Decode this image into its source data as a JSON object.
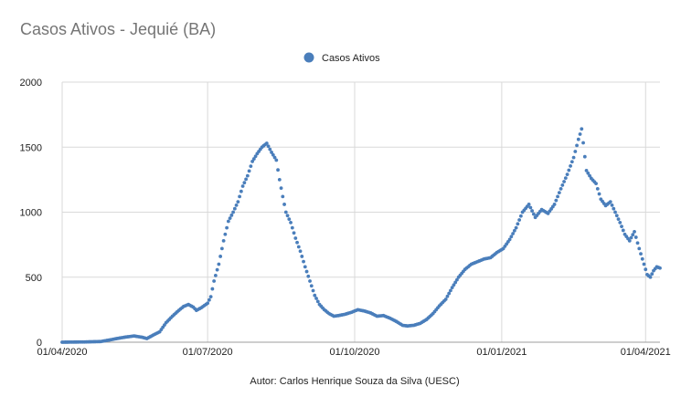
{
  "chart_data": {
    "type": "scatter",
    "title": "Casos Ativos - Jequié (BA)",
    "footer": "Autor: Carlos Henrique Souza da Silva  (UESC)",
    "legend": {
      "position": "top-center",
      "entries": [
        {
          "name": "Casos Ativos"
        }
      ]
    },
    "xlabel": "",
    "ylabel": "",
    "x_range": [
      "2020-04-01",
      "2021-04-10"
    ],
    "x_ticks": [
      "01/04/2020",
      "01/07/2020",
      "01/10/2020",
      "01/01/2021",
      "01/04/2021"
    ],
    "x_tick_dates": [
      "2020-04-01",
      "2020-07-01",
      "2020-10-01",
      "2021-01-01",
      "2021-04-01"
    ],
    "ylim": [
      0,
      2000
    ],
    "y_ticks": [
      0,
      500,
      1000,
      1500,
      2000
    ],
    "grid": true,
    "series": [
      {
        "name": "Casos Ativos",
        "color": "#4a7ebb",
        "points": [
          [
            "2020-04-01",
            0
          ],
          [
            "2020-04-15",
            2
          ],
          [
            "2020-04-25",
            5
          ],
          [
            "2020-05-01",
            18
          ],
          [
            "2020-05-06",
            30
          ],
          [
            "2020-05-11",
            40
          ],
          [
            "2020-05-16",
            48
          ],
          [
            "2020-05-21",
            38
          ],
          [
            "2020-05-24",
            28
          ],
          [
            "2020-05-28",
            55
          ],
          [
            "2020-06-01",
            80
          ],
          [
            "2020-06-05",
            150
          ],
          [
            "2020-06-09",
            200
          ],
          [
            "2020-06-13",
            245
          ],
          [
            "2020-06-16",
            275
          ],
          [
            "2020-06-19",
            290
          ],
          [
            "2020-06-22",
            270
          ],
          [
            "2020-06-24",
            245
          ],
          [
            "2020-06-27",
            265
          ],
          [
            "2020-07-01",
            300
          ],
          [
            "2020-07-03",
            350
          ],
          [
            "2020-07-05",
            470
          ],
          [
            "2020-07-08",
            600
          ],
          [
            "2020-07-11",
            780
          ],
          [
            "2020-07-14",
            930
          ],
          [
            "2020-07-17",
            1000
          ],
          [
            "2020-07-20",
            1080
          ],
          [
            "2020-07-23",
            1200
          ],
          [
            "2020-07-26",
            1280
          ],
          [
            "2020-07-29",
            1390
          ],
          [
            "2020-08-01",
            1450
          ],
          [
            "2020-08-04",
            1500
          ],
          [
            "2020-08-07",
            1530
          ],
          [
            "2020-08-10",
            1460
          ],
          [
            "2020-08-13",
            1400
          ],
          [
            "2020-08-15",
            1250
          ],
          [
            "2020-08-17",
            1120
          ],
          [
            "2020-08-19",
            1000
          ],
          [
            "2020-08-22",
            920
          ],
          [
            "2020-08-25",
            800
          ],
          [
            "2020-08-28",
            700
          ],
          [
            "2020-08-31",
            580
          ],
          [
            "2020-09-03",
            470
          ],
          [
            "2020-09-06",
            360
          ],
          [
            "2020-09-09",
            290
          ],
          [
            "2020-09-12",
            250
          ],
          [
            "2020-09-15",
            220
          ],
          [
            "2020-09-18",
            200
          ],
          [
            "2020-09-21",
            205
          ],
          [
            "2020-09-25",
            215
          ],
          [
            "2020-09-29",
            230
          ],
          [
            "2020-10-03",
            250
          ],
          [
            "2020-10-07",
            240
          ],
          [
            "2020-10-11",
            225
          ],
          [
            "2020-10-15",
            200
          ],
          [
            "2020-10-19",
            205
          ],
          [
            "2020-10-23",
            185
          ],
          [
            "2020-10-27",
            160
          ],
          [
            "2020-10-31",
            130
          ],
          [
            "2020-11-03",
            125
          ],
          [
            "2020-11-07",
            130
          ],
          [
            "2020-11-11",
            145
          ],
          [
            "2020-11-15",
            175
          ],
          [
            "2020-11-19",
            220
          ],
          [
            "2020-11-23",
            280
          ],
          [
            "2020-11-27",
            330
          ],
          [
            "2020-12-01",
            420
          ],
          [
            "2020-12-05",
            500
          ],
          [
            "2020-12-09",
            560
          ],
          [
            "2020-12-13",
            600
          ],
          [
            "2020-12-17",
            620
          ],
          [
            "2020-12-21",
            640
          ],
          [
            "2020-12-25",
            650
          ],
          [
            "2020-12-29",
            690
          ],
          [
            "2021-01-02",
            720
          ],
          [
            "2021-01-06",
            790
          ],
          [
            "2021-01-10",
            880
          ],
          [
            "2021-01-14",
            1000
          ],
          [
            "2021-01-18",
            1060
          ],
          [
            "2021-01-22",
            960
          ],
          [
            "2021-01-26",
            1020
          ],
          [
            "2021-01-30",
            990
          ],
          [
            "2021-02-03",
            1060
          ],
          [
            "2021-02-07",
            1180
          ],
          [
            "2021-02-11",
            1290
          ],
          [
            "2021-02-15",
            1420
          ],
          [
            "2021-02-18",
            1560
          ],
          [
            "2021-02-20",
            1640
          ],
          [
            "2021-02-23",
            1320
          ],
          [
            "2021-02-26",
            1260
          ],
          [
            "2021-03-01",
            1220
          ],
          [
            "2021-03-04",
            1100
          ],
          [
            "2021-03-07",
            1050
          ],
          [
            "2021-03-10",
            1080
          ],
          [
            "2021-03-13",
            1000
          ],
          [
            "2021-03-16",
            920
          ],
          [
            "2021-03-19",
            830
          ],
          [
            "2021-03-22",
            780
          ],
          [
            "2021-03-25",
            850
          ],
          [
            "2021-03-28",
            720
          ],
          [
            "2021-03-31",
            600
          ],
          [
            "2021-04-02",
            520
          ],
          [
            "2021-04-04",
            500
          ],
          [
            "2021-04-06",
            550
          ],
          [
            "2021-04-08",
            580
          ],
          [
            "2021-04-10",
            570
          ]
        ]
      }
    ]
  }
}
